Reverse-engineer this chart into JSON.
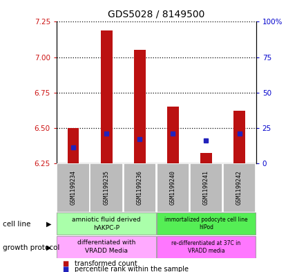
{
  "title": "GDS5028 / 8149500",
  "samples": [
    "GSM1199234",
    "GSM1199235",
    "GSM1199236",
    "GSM1199240",
    "GSM1199241",
    "GSM1199242"
  ],
  "bar_bottoms": [
    6.25,
    6.25,
    6.25,
    6.25,
    6.25,
    6.25
  ],
  "bar_tops": [
    6.5,
    7.19,
    7.05,
    6.65,
    6.32,
    6.62
  ],
  "blue_dot_y": [
    6.36,
    6.46,
    6.42,
    6.46,
    6.41,
    6.46
  ],
  "ylim": [
    6.25,
    7.25
  ],
  "yticks_left": [
    6.25,
    6.5,
    6.75,
    7.0,
    7.25
  ],
  "yticks_right_labels": [
    "0",
    "25",
    "50",
    "75",
    "100%"
  ],
  "bar_color": "#BB1111",
  "dot_color": "#2222BB",
  "cell_line_left": "amniotic fluid derived\nhAKPC-P",
  "cell_line_right": "immortalized podocyte cell line\nhIPod",
  "growth_left": "differentiated with\nVRADD Media",
  "growth_right": "re-differentiated at 37C in\nVRADD media",
  "cell_line_bg_left": "#AAFFAA",
  "cell_line_bg_right": "#55EE55",
  "growth_bg_left": "#FFAAFF",
  "growth_bg_right": "#FF77FF",
  "legend_red": "transformed count",
  "legend_blue": "percentile rank within the sample",
  "label_cell_line": "cell line",
  "label_growth": "growth protocol",
  "right_axis_color": "#0000CC",
  "left_axis_color": "#CC1111",
  "sample_box_color": "#BBBBBB",
  "bar_width": 0.35
}
